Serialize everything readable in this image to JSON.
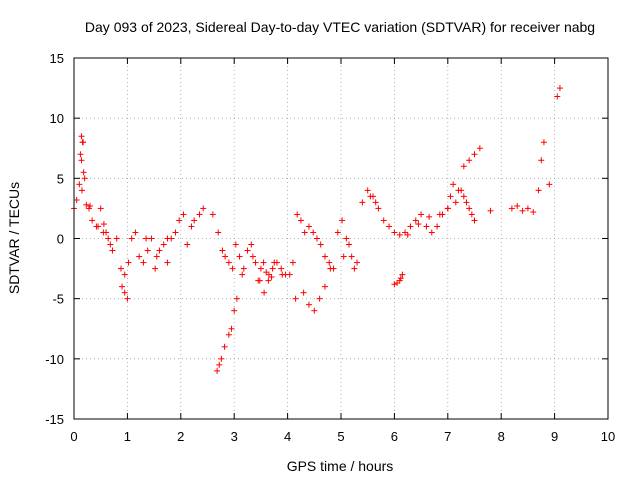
{
  "chart_data": {
    "type": "scatter",
    "title": "Day 093 of 2023, Sidereal Day-to-day VTEC variation (SDTVAR) for receiver nabg",
    "xlabel": "GPS time / hours",
    "ylabel": "SDTVAR / TECUs",
    "xlim": [
      0,
      10
    ],
    "ylim": [
      -15,
      15
    ],
    "xticks": [
      0,
      1,
      2,
      3,
      4,
      5,
      6,
      7,
      8,
      9,
      10
    ],
    "yticks": [
      -15,
      -10,
      -5,
      0,
      5,
      10,
      15
    ],
    "grid": true,
    "marker": "+",
    "color": "#ff0000",
    "series": [
      {
        "name": "SDTVAR",
        "x": [
          0.0,
          0.05,
          0.1,
          0.14,
          0.17,
          0.2,
          0.23,
          0.28,
          0.34,
          0.42,
          0.5,
          0.56,
          0.6,
          0.64,
          0.68,
          0.72,
          0.8,
          0.88,
          0.95,
          1.02,
          1.08,
          1.15,
          1.22,
          1.3,
          1.38,
          1.45,
          1.52,
          1.6,
          1.68,
          1.75,
          1.82,
          1.9,
          1.97,
          2.05,
          2.12,
          2.2,
          2.25,
          2.42,
          2.6,
          2.7,
          2.78,
          2.83,
          2.9,
          2.97,
          3.03,
          3.1,
          3.18,
          3.25,
          3.32,
          3.4,
          3.48,
          3.56,
          3.64,
          3.72,
          3.8,
          3.88,
          3.96,
          4.04,
          4.1,
          4.18,
          4.25,
          4.32,
          4.4,
          4.48,
          4.55,
          4.62,
          4.7,
          4.78,
          4.86,
          4.94,
          5.02,
          5.1,
          5.2,
          5.3,
          5.4,
          5.5,
          5.6,
          5.7,
          5.8,
          5.9,
          6.0,
          6.1,
          6.2,
          6.3,
          6.4,
          6.5,
          6.6,
          6.7,
          6.8,
          6.9,
          7.0,
          7.05,
          7.1,
          7.15,
          7.2,
          7.3,
          7.4,
          7.5,
          7.6,
          8.2,
          8.3,
          8.4,
          8.5,
          8.6,
          8.7,
          8.75,
          8.8,
          9.05,
          9.1,
          0.12,
          0.14,
          0.16,
          0.18,
          0.15,
          0.9,
          0.95,
          1.0,
          2.68,
          2.72,
          2.76,
          2.82,
          2.9,
          2.95,
          3.0,
          3.05,
          3.5,
          3.55,
          3.6,
          3.65,
          3.7,
          4.3,
          4.4,
          4.5,
          4.6,
          4.7,
          4.8,
          5.55,
          5.65,
          6.0,
          6.05,
          6.1,
          6.12,
          6.15,
          7.25,
          7.3,
          7.35,
          7.4,
          7.45,
          7.5,
          0.3,
          0.45,
          0.55,
          1.35,
          1.55,
          1.75,
          2.35,
          3.15,
          3.35,
          3.45,
          3.75,
          3.9,
          4.15,
          5.05,
          5.15,
          5.25,
          6.25,
          6.45,
          6.65,
          6.85,
          7.0,
          7.8,
          8.9
        ],
        "y": [
          2.5,
          3.2,
          4.5,
          6.5,
          8.0,
          5.0,
          2.8,
          2.5,
          1.5,
          1.0,
          2.5,
          1.2,
          0.5,
          0.0,
          -0.5,
          -1.0,
          0.0,
          -2.5,
          -3.0,
          -2.0,
          0.0,
          0.5,
          -1.5,
          -2.0,
          -1.0,
          0.0,
          -2.5,
          -1.0,
          -0.5,
          -2.0,
          0.0,
          0.5,
          1.5,
          2.0,
          -0.5,
          1.0,
          1.5,
          2.5,
          2.0,
          0.5,
          -1.0,
          -1.5,
          -2.0,
          -2.5,
          -0.5,
          -1.5,
          -2.5,
          -1.0,
          -0.5,
          -2.0,
          -3.5,
          -4.5,
          -3.5,
          -2.5,
          -2.0,
          -2.5,
          -3.0,
          -3.0,
          -2.0,
          2.0,
          1.5,
          0.5,
          1.0,
          0.5,
          0.0,
          -0.5,
          -1.5,
          -2.0,
          -2.5,
          0.5,
          1.5,
          0.0,
          -1.5,
          -2.0,
          3.0,
          4.0,
          3.5,
          2.5,
          1.5,
          1.0,
          0.5,
          0.3,
          0.5,
          1.0,
          1.5,
          2.0,
          1.0,
          0.5,
          1.0,
          2.0,
          2.5,
          3.5,
          4.5,
          3.0,
          4.0,
          6.0,
          6.5,
          7.0,
          7.5,
          2.5,
          2.7,
          2.3,
          2.5,
          2.2,
          4.0,
          6.5,
          8.0,
          11.8,
          12.5,
          7.0,
          8.5,
          8.0,
          5.5,
          4.0,
          -4.0,
          -4.5,
          -5.0,
          -11.0,
          -10.5,
          -10.0,
          -9.0,
          -8.0,
          -7.5,
          -6.0,
          -5.0,
          -2.5,
          -2.0,
          -2.8,
          -3.0,
          -3.2,
          -4.5,
          -5.5,
          -6.0,
          -5.0,
          -4.0,
          -2.5,
          3.5,
          3.0,
          -3.8,
          -3.7,
          -3.5,
          -3.3,
          -3.0,
          4.0,
          3.5,
          3.0,
          2.5,
          2.0,
          1.5,
          2.7,
          1.0,
          0.5,
          0.0,
          -1.5,
          0.0,
          2.0,
          -3.0,
          -1.5,
          -3.5,
          -2.0,
          -3.0,
          -5.0,
          -1.5,
          -0.5,
          -2.5,
          0.3,
          1.2,
          1.8,
          2.0,
          2.5,
          2.3,
          4.5
        ]
      }
    ]
  }
}
